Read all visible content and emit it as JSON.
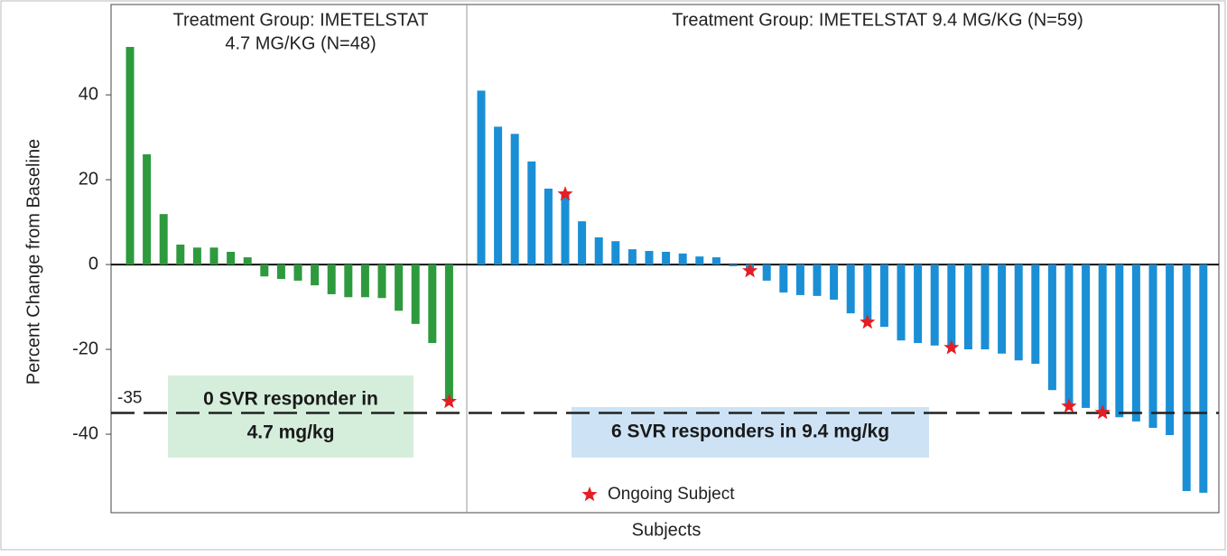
{
  "chart_data": {
    "type": "bar",
    "ylabel": "Percent Change from Baseline",
    "xlabel": "Subjects",
    "ylim": [
      -58.5,
      61.3
    ],
    "yticks": [
      -40,
      -20,
      0,
      20,
      40
    ],
    "refline": -35,
    "legend": "Ongoing Subject",
    "star_color": "#e31e24",
    "panels": [
      {
        "title": [
          "Treatment Group: IMETELSTAT",
          "4.7 MG/KG (N=48)"
        ],
        "color": "#2e9a3e",
        "values": [
          51.3,
          26,
          11.9,
          4.7,
          4,
          4,
          3,
          1.7,
          -2.8,
          -3.4,
          -3.8,
          -4.9,
          -7,
          -7.7,
          -7.7,
          -7.9,
          -10.9,
          -14,
          -18.5,
          -32.3
        ],
        "ongoing": [
          19
        ],
        "note": [
          "0 SVR responder in",
          "4.7 mg/kg"
        ],
        "note_color": "#d5eedb"
      },
      {
        "title": [
          "Treatment Group: IMETELSTAT 9.4 MG/KG (N=59)"
        ],
        "color": "#1a8fd6",
        "values": [
          41,
          32.5,
          30.8,
          24.3,
          17.9,
          16.6,
          10.2,
          6.4,
          5.5,
          3.6,
          3.2,
          3,
          2.6,
          1.9,
          1.7,
          -0.4,
          -1.5,
          -3.8,
          -6.6,
          -7.2,
          -7.4,
          -8.3,
          -11.5,
          -13.6,
          -14.7,
          -17.9,
          -18.5,
          -19.1,
          -19.6,
          -20,
          -20,
          -21,
          -22.6,
          -23.4,
          -29.6,
          -33.4,
          -33.8,
          -34.9,
          -36,
          -37,
          -38.5,
          -40.2,
          -53.4,
          -53.8
        ],
        "ongoing": [
          5,
          16,
          23,
          28,
          35,
          37
        ],
        "note": [
          "6 SVR responders in 9.4 mg/kg"
        ],
        "note_color": "#cde3f5"
      }
    ]
  }
}
